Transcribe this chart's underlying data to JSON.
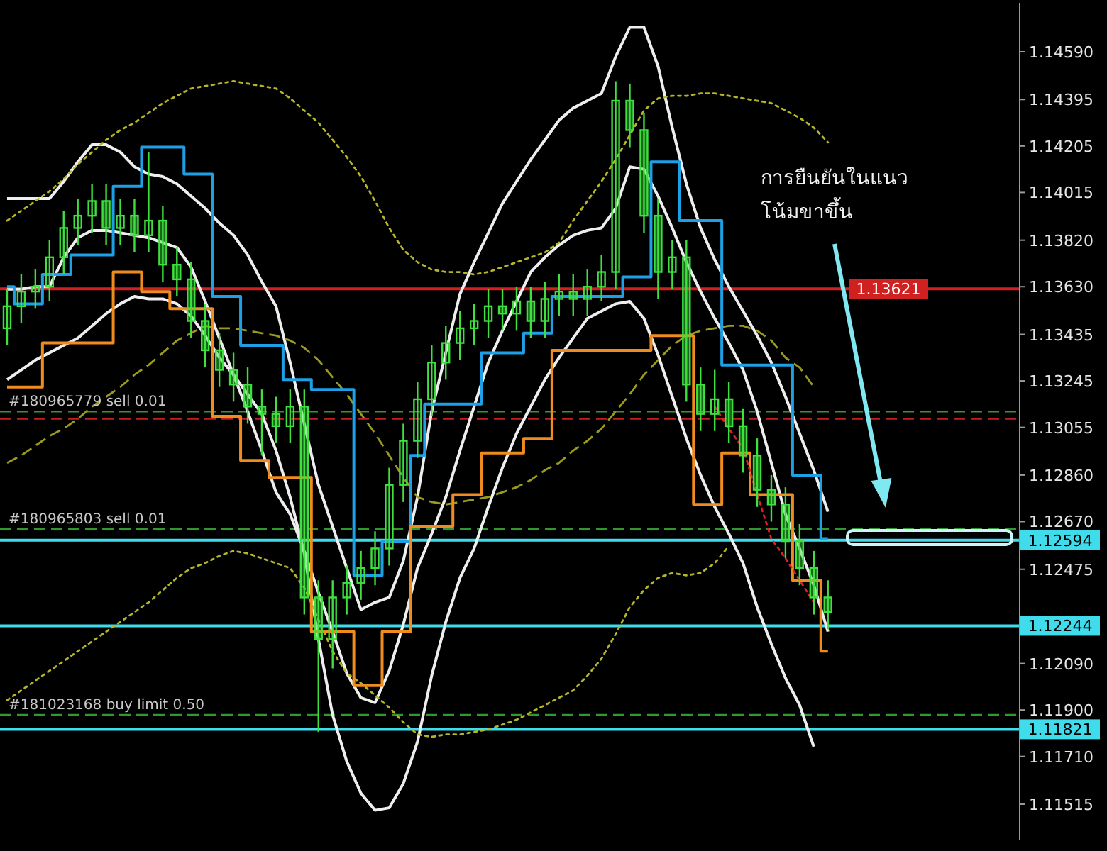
{
  "chart_data": {
    "type": "candlestick",
    "color": "#3ee03e",
    "tick_labels": "y",
    "categories": [
      null,
      null,
      null,
      null,
      null,
      null,
      null,
      null,
      null,
      null,
      null,
      null,
      null,
      null,
      null,
      null,
      null,
      null,
      null,
      null,
      null,
      null,
      null,
      null,
      null,
      null,
      null,
      null,
      null,
      null,
      null,
      null,
      null,
      null,
      null,
      null,
      null,
      null,
      null,
      null,
      null,
      null,
      null,
      null,
      null,
      null,
      null,
      null,
      null,
      null,
      null,
      null,
      null,
      null,
      null,
      null,
      null,
      null,
      null,
      null,
      null,
      null,
      null,
      null,
      null,
      null,
      null,
      null,
      null,
      null,
      null,
      null
    ],
    "ohlc": [
      [
        1.1346,
        1.1362,
        1.1339,
        1.1355
      ],
      [
        1.1355,
        1.1368,
        1.1348,
        1.1361
      ],
      [
        1.1361,
        1.137,
        1.1354,
        1.1363
      ],
      [
        1.1363,
        1.1382,
        1.1357,
        1.1375
      ],
      [
        1.1375,
        1.1394,
        1.1368,
        1.1387
      ],
      [
        1.1387,
        1.1399,
        1.138,
        1.1392
      ],
      [
        1.1392,
        1.1405,
        1.1385,
        1.1398
      ],
      [
        1.1398,
        1.1405,
        1.138,
        1.1387
      ],
      [
        1.1387,
        1.1399,
        1.138,
        1.1392
      ],
      [
        1.1392,
        1.1399,
        1.1377,
        1.1384
      ],
      [
        1.1384,
        1.1418,
        1.1377,
        1.139
      ],
      [
        1.139,
        1.1396,
        1.1365,
        1.1372
      ],
      [
        1.1372,
        1.1379,
        1.1359,
        1.1366
      ],
      [
        1.1366,
        1.1373,
        1.1342,
        1.1349
      ],
      [
        1.1349,
        1.1356,
        1.133,
        1.1337
      ],
      [
        1.1337,
        1.1344,
        1.1322,
        1.1329
      ],
      [
        1.1329,
        1.1336,
        1.1316,
        1.1323
      ],
      [
        1.1323,
        1.133,
        1.1307,
        1.1314
      ],
      [
        1.1314,
        1.1321,
        1.1294,
        1.1311
      ],
      [
        1.1311,
        1.1318,
        1.1299,
        1.1306
      ],
      [
        1.1306,
        1.1321,
        1.1299,
        1.1314
      ],
      [
        1.1314,
        1.1321,
        1.1229,
        1.1236
      ],
      [
        1.1236,
        1.1243,
        1.1181,
        1.1219
      ],
      [
        1.1219,
        1.1243,
        1.1207,
        1.1236
      ],
      [
        1.1236,
        1.1249,
        1.1229,
        1.1242
      ],
      [
        1.1242,
        1.1255,
        1.1235,
        1.1248
      ],
      [
        1.1248,
        1.1263,
        1.1241,
        1.1256
      ],
      [
        1.1256,
        1.1289,
        1.1249,
        1.1282
      ],
      [
        1.1282,
        1.1307,
        1.1275,
        1.13
      ],
      [
        1.13,
        1.1324,
        1.1293,
        1.1317
      ],
      [
        1.1317,
        1.1339,
        1.131,
        1.1332
      ],
      [
        1.1332,
        1.1347,
        1.1325,
        1.134
      ],
      [
        1.134,
        1.1353,
        1.1333,
        1.1346
      ],
      [
        1.1346,
        1.1356,
        1.1339,
        1.1349
      ],
      [
        1.1349,
        1.1362,
        1.1342,
        1.1355
      ],
      [
        1.1355,
        1.1362,
        1.1345,
        1.1352
      ],
      [
        1.1352,
        1.1363,
        1.1345,
        1.1357
      ],
      [
        1.1357,
        1.1363,
        1.1342,
        1.1349
      ],
      [
        1.1349,
        1.1365,
        1.1342,
        1.1358
      ],
      [
        1.1358,
        1.1368,
        1.1351,
        1.1361
      ],
      [
        1.1361,
        1.1368,
        1.1351,
        1.1358
      ],
      [
        1.1358,
        1.137,
        1.1351,
        1.1363
      ],
      [
        1.1363,
        1.1376,
        1.1357,
        1.1369
      ],
      [
        1.1369,
        1.1447,
        1.1362,
        1.1439
      ],
      [
        1.1439,
        1.1446,
        1.142,
        1.1427
      ],
      [
        1.1427,
        1.1434,
        1.1385,
        1.1392
      ],
      [
        1.1392,
        1.1399,
        1.1358,
        1.1369
      ],
      [
        1.1369,
        1.1382,
        1.1362,
        1.1375
      ],
      [
        1.1375,
        1.1382,
        1.1316,
        1.1323
      ],
      [
        1.1323,
        1.133,
        1.1304,
        1.1311
      ],
      [
        1.1311,
        1.1329,
        1.1304,
        1.1317
      ],
      [
        1.1317,
        1.1324,
        1.1299,
        1.1306
      ],
      [
        1.1306,
        1.1313,
        1.1287,
        1.1294
      ],
      [
        1.1294,
        1.1301,
        1.1273,
        1.128
      ],
      [
        1.128,
        1.1286,
        1.1267,
        1.1274
      ],
      [
        1.1274,
        1.1281,
        1.1252,
        1.1259
      ],
      [
        1.1259,
        1.1266,
        1.1241,
        1.1248
      ],
      [
        1.1248,
        1.1255,
        1.1229,
        1.1236
      ],
      [
        1.1236,
        1.1243,
        1.1223,
        1.123
      ],
      null,
      null,
      null,
      null,
      null,
      null,
      null,
      null,
      null,
      null,
      null,
      null,
      null
    ],
    "series": [
      {
        "type": "line",
        "color": "#eeeeee",
        "values": [
          1.1399,
          1.1399,
          1.1399,
          1.1399,
          1.1406,
          1.1414,
          1.1421,
          1.1421,
          1.1418,
          1.1412,
          1.1409,
          1.1408,
          1.1405,
          1.14,
          1.1395,
          1.1389,
          1.1384,
          1.1376,
          1.1365,
          1.1355,
          1.1332,
          1.1307,
          1.1282,
          1.1265,
          1.1248,
          1.1231,
          1.1234,
          1.1236,
          1.1251,
          1.1277,
          1.1312,
          1.1336,
          1.136,
          1.1373,
          1.1385,
          1.1397,
          1.1406,
          1.1415,
          1.1423,
          1.1431,
          1.1436,
          1.1439,
          1.1442,
          1.1457,
          1.1469,
          1.1469,
          1.1453,
          1.1428,
          1.1405,
          1.1387,
          1.1374,
          1.1363,
          1.1353,
          1.1343,
          1.1332,
          1.1318,
          1.1303,
          1.1288,
          1.1271,
          null,
          null,
          null,
          null,
          null,
          null,
          null,
          null,
          null,
          null,
          null,
          null,
          null
        ]
      },
      {
        "type": "line",
        "color": "#eeeeee",
        "values": [
          1.1362,
          1.1362,
          1.1363,
          1.1363,
          1.1375,
          1.1383,
          1.1386,
          1.1386,
          1.1385,
          1.1384,
          1.1383,
          1.1381,
          1.1379,
          1.1371,
          1.1357,
          1.1342,
          1.1327,
          1.1312,
          1.1296,
          1.1279,
          1.127,
          1.1255,
          1.1238,
          1.1222,
          1.1205,
          1.1195,
          1.1193,
          1.1206,
          1.1225,
          1.1248,
          1.1262,
          1.1277,
          1.1296,
          1.1314,
          1.1332,
          1.1345,
          1.1357,
          1.1369,
          1.1375,
          1.138,
          1.1384,
          1.1386,
          1.1387,
          1.1395,
          1.1412,
          1.1411,
          1.14,
          1.1387,
          1.1373,
          1.1361,
          1.135,
          1.134,
          1.1329,
          1.1312,
          1.1291,
          1.127,
          1.1256,
          1.1241,
          1.1222,
          null,
          null,
          null,
          null,
          null,
          null,
          null,
          null,
          null,
          null,
          null,
          null,
          null
        ]
      },
      {
        "type": "line",
        "color": "#eeeeee",
        "values": [
          1.1325,
          1.1329,
          1.1333,
          1.1336,
          1.1339,
          1.1342,
          1.1347,
          1.1352,
          1.1356,
          1.1359,
          1.1358,
          1.1358,
          1.1356,
          1.1351,
          1.1343,
          1.1334,
          1.1327,
          1.1319,
          1.1311,
          1.1296,
          1.1277,
          1.1254,
          1.1219,
          1.1188,
          1.1169,
          1.1156,
          1.1149,
          1.115,
          1.116,
          1.1177,
          1.1204,
          1.1226,
          1.1244,
          1.1256,
          1.1273,
          1.1289,
          1.1303,
          1.1314,
          1.1325,
          1.1334,
          1.1342,
          1.135,
          1.1353,
          1.1356,
          1.1357,
          1.135,
          1.1335,
          1.1318,
          1.1301,
          1.1286,
          1.1273,
          1.1262,
          1.125,
          1.1232,
          1.1217,
          1.1203,
          1.1192,
          1.1175,
          null,
          null,
          null,
          null,
          null,
          null,
          null,
          null,
          null,
          null,
          null,
          null,
          null,
          null
        ]
      },
      {
        "type": "line",
        "color": "#b5b528",
        "line_style": "dotted",
        "values": [
          1.139,
          1.1394,
          1.1398,
          1.1402,
          1.1407,
          1.1413,
          1.1418,
          1.1423,
          1.1427,
          1.143,
          1.1434,
          1.1438,
          1.1441,
          1.1444,
          1.1445,
          1.1446,
          1.1447,
          1.1446,
          1.1445,
          1.1444,
          1.144,
          1.1435,
          1.143,
          1.1423,
          1.1416,
          1.1408,
          1.1398,
          1.1387,
          1.1378,
          1.1373,
          1.137,
          1.1369,
          1.1369,
          1.1368,
          1.1369,
          1.1371,
          1.1373,
          1.1375,
          1.1377,
          1.1381,
          1.139,
          1.1398,
          1.1406,
          1.1415,
          1.1425,
          1.1435,
          1.144,
          1.1441,
          1.1441,
          1.1442,
          1.1442,
          1.1441,
          1.144,
          1.1439,
          1.1438,
          1.1435,
          1.1432,
          1.1428,
          1.1422,
          null,
          null,
          null,
          null,
          null,
          null,
          null,
          null,
          null,
          null,
          null,
          null,
          null
        ]
      },
      {
        "type": "line",
        "color": "#b5b528",
        "line_style": "dotted",
        "values": [
          1.1194,
          1.1198,
          1.1202,
          1.1206,
          1.121,
          1.1214,
          1.1218,
          1.1222,
          1.1226,
          1.123,
          1.1234,
          1.1239,
          1.1244,
          1.1248,
          1.125,
          1.1253,
          1.1255,
          1.1254,
          1.1252,
          1.125,
          1.1248,
          1.124,
          1.1227,
          1.1214,
          1.1205,
          1.1201,
          1.1196,
          1.1191,
          1.1185,
          1.118,
          1.1179,
          1.118,
          1.118,
          1.1181,
          1.1182,
          1.1184,
          1.1186,
          1.1189,
          1.1192,
          1.1195,
          1.1198,
          1.1204,
          1.1211,
          1.1221,
          1.1232,
          1.1239,
          1.1244,
          1.1246,
          1.1245,
          1.1246,
          1.125,
          1.1257,
          null,
          null,
          null,
          null,
          null,
          null,
          null,
          null,
          null,
          null,
          null,
          null,
          null,
          null,
          null,
          null,
          null,
          null,
          null,
          null
        ]
      },
      {
        "type": "line",
        "color": "#9a9a1e",
        "line_style": "dashed",
        "values": [
          1.1291,
          1.1294,
          1.1298,
          1.1302,
          1.1305,
          1.1309,
          1.1314,
          1.1318,
          1.1322,
          1.1327,
          1.1331,
          1.1336,
          1.1341,
          1.1344,
          1.1347,
          1.1346,
          1.1346,
          1.1345,
          1.1344,
          1.1343,
          1.1341,
          1.1338,
          1.1333,
          1.1326,
          1.1319,
          1.1311,
          1.1303,
          1.1294,
          1.1285,
          1.1277,
          1.1275,
          1.1274,
          1.1275,
          1.1276,
          1.1277,
          1.1279,
          1.1281,
          1.1284,
          1.1288,
          1.1291,
          1.1296,
          1.13,
          1.1305,
          1.1312,
          1.1319,
          1.1327,
          1.1333,
          1.1339,
          1.1343,
          1.1345,
          1.1346,
          1.1347,
          1.1347,
          1.1345,
          1.1341,
          1.1334,
          1.133,
          1.1322,
          null,
          null,
          null,
          null,
          null,
          null,
          null,
          null,
          null,
          null,
          null,
          null,
          null,
          null
        ]
      },
      {
        "type": "step",
        "color": "#1ea0e6",
        "values": [
          1.1363,
          1.1356,
          1.1356,
          1.1368,
          1.1368,
          1.1376,
          1.1376,
          1.1376,
          1.1404,
          1.1404,
          1.142,
          1.142,
          1.142,
          1.1409,
          1.1409,
          1.1359,
          1.1359,
          1.1339,
          1.1339,
          1.1339,
          1.1325,
          1.1325,
          1.1321,
          1.1321,
          1.1321,
          1.1245,
          1.1245,
          1.1259,
          1.1259,
          1.1294,
          1.1315,
          1.1315,
          1.1315,
          1.1315,
          1.1336,
          1.1336,
          1.1336,
          1.1344,
          1.1344,
          1.1359,
          1.1359,
          1.1359,
          1.1359,
          1.1359,
          1.1367,
          1.1367,
          1.1414,
          1.1414,
          1.139,
          1.139,
          1.139,
          1.1331,
          1.1331,
          1.1331,
          1.1331,
          1.1331,
          1.1286,
          1.1286,
          1.126,
          null,
          null,
          null,
          null,
          null,
          null,
          null,
          null,
          null,
          null,
          null,
          null,
          null
        ]
      },
      {
        "type": "step",
        "color": "#f08c1e",
        "values": [
          1.1322,
          1.1322,
          1.1322,
          1.134,
          1.134,
          1.134,
          1.134,
          1.134,
          1.1369,
          1.1369,
          1.1361,
          1.1361,
          1.1354,
          1.1354,
          1.1354,
          1.131,
          1.131,
          1.1292,
          1.1292,
          1.1285,
          1.1285,
          1.1285,
          1.1222,
          1.1222,
          1.1222,
          1.12,
          1.12,
          1.1222,
          1.1222,
          1.1265,
          1.1265,
          1.1265,
          1.1278,
          1.1278,
          1.1295,
          1.1295,
          1.1295,
          1.1301,
          1.1301,
          1.1337,
          1.1337,
          1.1337,
          1.1337,
          1.1337,
          1.1337,
          1.1337,
          1.1343,
          1.1343,
          1.1343,
          1.1274,
          1.1274,
          1.1295,
          1.1295,
          1.1278,
          1.1278,
          1.1278,
          1.1243,
          1.1243,
          1.1214,
          null,
          null,
          null,
          null,
          null,
          null,
          null,
          null,
          null,
          null,
          null,
          null,
          null
        ]
      },
      {
        "type": "line",
        "color": "#e02020",
        "line_style": "dotted",
        "values": [
          null,
          null,
          null,
          null,
          null,
          null,
          null,
          null,
          null,
          null,
          null,
          null,
          null,
          null,
          null,
          null,
          null,
          null,
          null,
          null,
          null,
          null,
          null,
          null,
          null,
          null,
          null,
          null,
          null,
          null,
          null,
          null,
          null,
          null,
          null,
          null,
          null,
          null,
          null,
          null,
          null,
          null,
          null,
          null,
          null,
          null,
          null,
          null,
          null,
          null,
          1.1314,
          1.1305,
          1.1297,
          1.1278,
          1.126,
          1.1252,
          1.1243,
          1.1234,
          null,
          null,
          null,
          null,
          null,
          null,
          null,
          null,
          null,
          null,
          null,
          null,
          null,
          null
        ]
      }
    ],
    "ylim": [
      1.1137,
      1.1479
    ],
    "yticks": [
      {
        "value": 1.1459,
        "label": "1.14590"
      },
      1.14395,
      1.14205,
      1.14015,
      {
        "value": 1.1382,
        "label": "1.13820"
      },
      {
        "value": 1.1363,
        "label": "1.13630"
      },
      1.13435,
      1.13245,
      1.13055,
      {
        "value": 1.1286,
        "label": "1.12860"
      },
      {
        "value": 1.1267,
        "label": "1.12670"
      },
      1.12475,
      {
        "value": 1.1209,
        "label": "1.12090"
      },
      {
        "value": 1.119,
        "label": "1.11900"
      },
      {
        "value": 1.1171,
        "label": "1.11710"
      },
      1.11515
    ],
    "ref_lines": [
      {
        "axis": "y",
        "value": 1.13621,
        "label": "1.13621",
        "color": "#d02020",
        "line_style": "solid"
      },
      {
        "axis": "y",
        "value": 1.1312,
        "label": "#180965779 sell 0.01",
        "color": "#2e9a2e",
        "line_style": "dashed"
      },
      {
        "axis": "y",
        "value": 1.1309,
        "color": "#c02020",
        "line_style": "dashed"
      },
      {
        "axis": "y",
        "value": 1.1264,
        "label": "#180965803 sell 0.01",
        "color": "#2e9a2e",
        "line_style": "dashed"
      },
      {
        "axis": "y",
        "value": 1.12594,
        "label": "1.12594",
        "color": "#40dcec",
        "line_style": "solid"
      },
      {
        "axis": "y",
        "value": 1.12244,
        "label": "1.12244",
        "color": "#40dcec",
        "line_style": "solid"
      },
      {
        "axis": "y",
        "value": 1.1188,
        "label": "#181023168 buy limit 0.50",
        "color": "#2e9a2e",
        "line_style": "dashed"
      },
      {
        "axis": "y",
        "value": 1.11821,
        "label": "1.11821",
        "color": "#40dcec",
        "line_style": "solid"
      }
    ],
    "annotations": [
      "การยืนยันในแนว\nโน้มขาขึ้น"
    ]
  }
}
